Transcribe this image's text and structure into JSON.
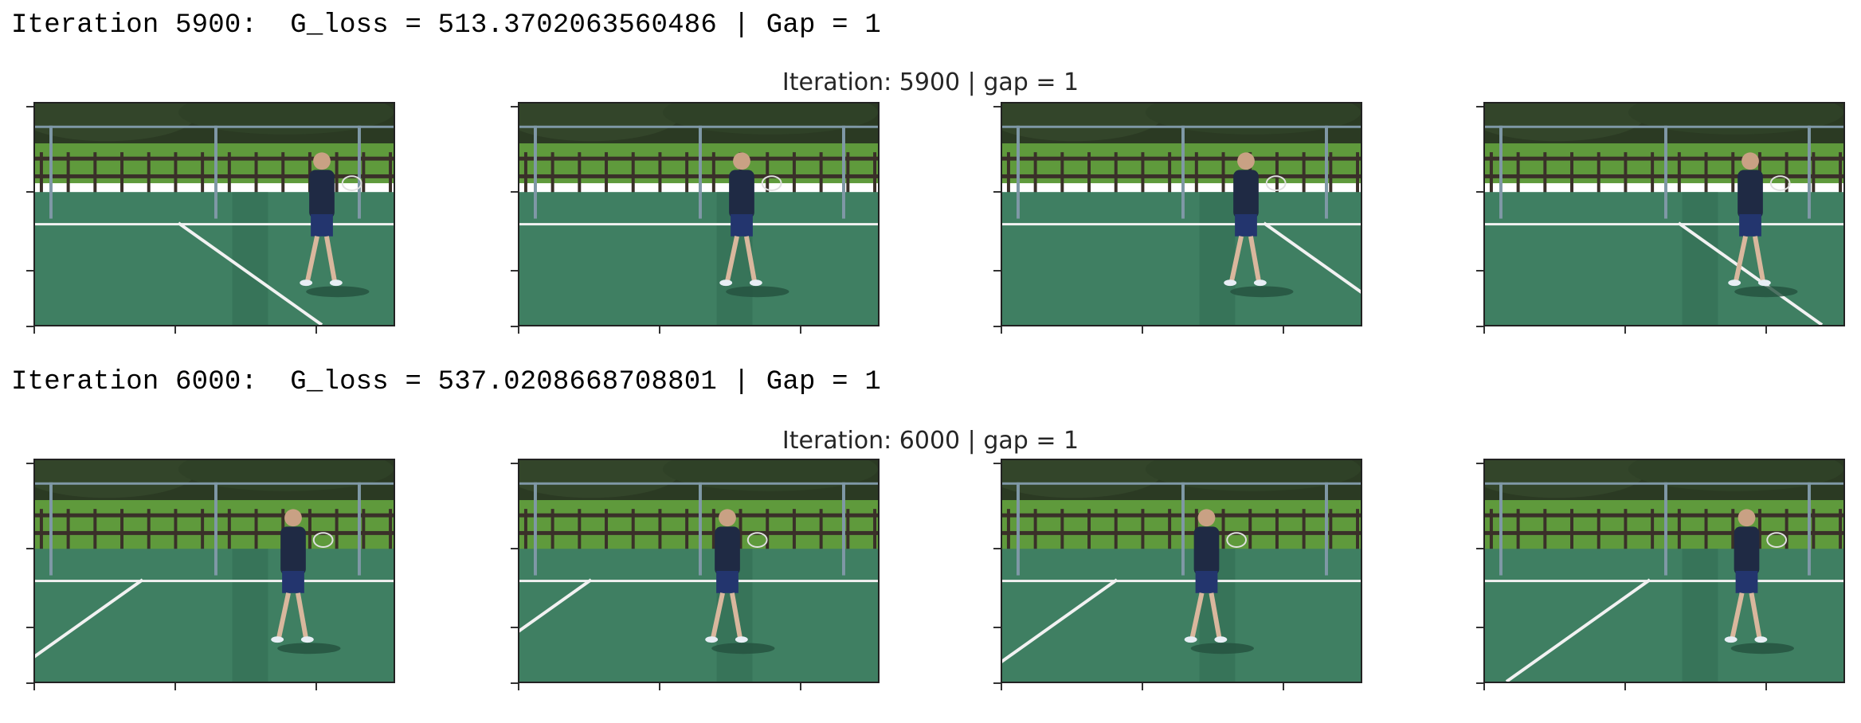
{
  "log": {
    "line1": "Iteration 5900:  G_loss = 513.3702063560486 | Gap = 1",
    "line2": "Iteration 6000:  G_loss = 537.0208668708801 | Gap = 1"
  },
  "figures": [
    {
      "title": "Iteration: 5900 | gap = 1",
      "frames": [
        {
          "description": "tennis-player-frame"
        },
        {
          "description": "tennis-player-frame"
        },
        {
          "description": "tennis-player-frame"
        },
        {
          "description": "tennis-player-frame"
        }
      ]
    },
    {
      "title": "Iteration: 6000 | gap = 1",
      "frames": [
        {
          "description": "tennis-player-frame"
        },
        {
          "description": "tennis-player-frame"
        },
        {
          "description": "tennis-player-frame"
        },
        {
          "description": "tennis-player-frame"
        }
      ]
    }
  ],
  "colors": {
    "court": "#3f7f62",
    "court_shadow": "#2f6a50",
    "trees": "#2b3a23",
    "grass": "#5f9a3c",
    "fence": "#3a3029",
    "player_shirt": "#1f2a44",
    "player_shorts": "#23356e",
    "court_line": "#f2f2f2"
  }
}
